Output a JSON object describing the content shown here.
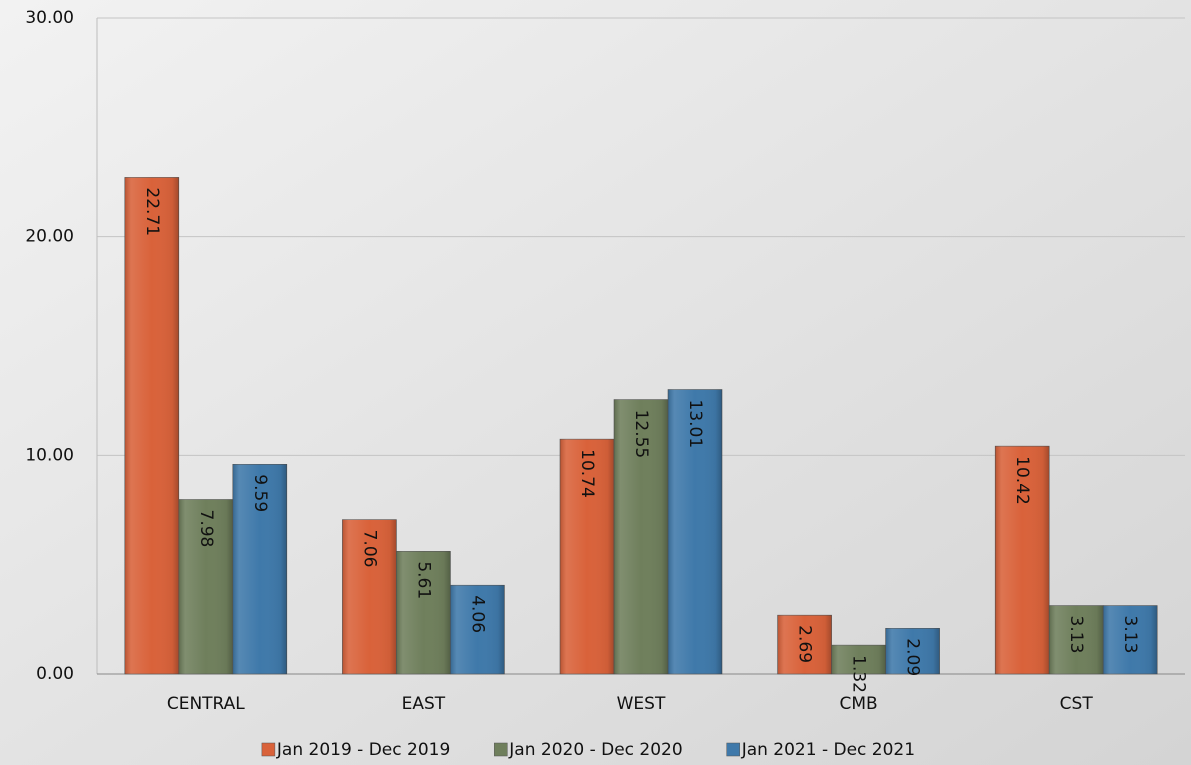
{
  "chart_data": {
    "type": "bar",
    "categories": [
      "CENTRAL",
      "EAST",
      "WEST",
      "CMB",
      "CST"
    ],
    "series": [
      {
        "name": "Jan 2019 - Dec 2019",
        "color": "#d9623a",
        "values": [
          22.71,
          7.06,
          10.74,
          2.69,
          10.42
        ]
      },
      {
        "name": "Jan 2020 - Dec 2020",
        "color": "#6f7f5c",
        "values": [
          7.98,
          5.61,
          12.55,
          1.32,
          3.13
        ]
      },
      {
        "name": "Jan 2021 - Dec 2021",
        "color": "#3f79aa",
        "values": [
          9.59,
          4.06,
          13.01,
          2.09,
          3.13
        ]
      }
    ],
    "ylim": [
      0,
      30
    ],
    "yticks": [
      {
        "value": 0,
        "label": "0.00"
      },
      {
        "value": 10,
        "label": "10.00"
      },
      {
        "value": 20,
        "label": "20.00"
      },
      {
        "value": 30,
        "label": "30.00"
      }
    ],
    "grid": true,
    "legend": "bottom"
  }
}
